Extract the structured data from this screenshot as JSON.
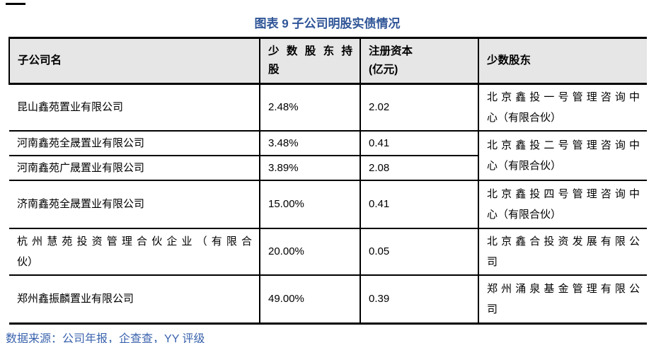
{
  "title": "图表 9 子公司明股实债情况",
  "colors": {
    "title_blue": "#2F5597",
    "source_blue": "#3A63AD",
    "header_bg": "#E6E6E6",
    "border": "#000000"
  },
  "table": {
    "headers": {
      "subsidiary": "子公司名",
      "stake_line1": "少数股东持",
      "stake_line2": "股",
      "capital_line1": "注册资本",
      "capital_line2": "(亿元)",
      "shareholder": "少数股东"
    },
    "rows": [
      {
        "name1": "昆山鑫苑置业有限公司",
        "name2": "",
        "stake": "2.48%",
        "capital": "2.02",
        "holder1": "北京鑫投一号管理咨询中",
        "holder2": "心（有限合伙）"
      },
      {
        "name1": "河南鑫苑全晟置业有限公司",
        "name2": "",
        "stake": "3.48%",
        "capital": "0.41",
        "holder1": "北京鑫投二号管理咨询中",
        "holder2": "心（有限合伙）"
      },
      {
        "name1": "河南鑫苑广晟置业有限公司",
        "name2": "",
        "stake": "3.89%",
        "capital": "2.08"
      },
      {
        "name1": "济南鑫苑全晟置业有限公司",
        "name2": "",
        "stake": "15.00%",
        "capital": "0.41",
        "holder1": "北京鑫投四号管理咨询中",
        "holder2": "心（有限合伙）"
      },
      {
        "name1": "杭州慧苑投资管理合伙企业（有限合",
        "name2": "伙）",
        "stake": "20.00%",
        "capital": "0.05",
        "holder1": "北京鑫合投资发展有限公",
        "holder2": "司"
      },
      {
        "name1": "郑州鑫振麟置业有限公司",
        "name2": "",
        "stake": "49.00%",
        "capital": "0.39",
        "holder1": "郑州涌泉基金管理有限公",
        "holder2": "司"
      }
    ]
  },
  "source": {
    "prefix": "数据来源：公司年报，",
    "link": "企查查",
    "suffix": "，YY 评级"
  }
}
